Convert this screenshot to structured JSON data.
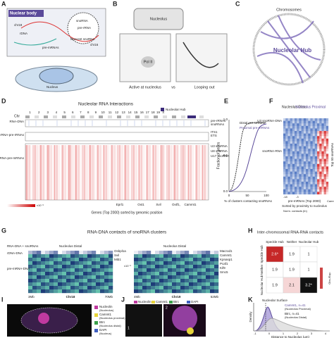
{
  "A": {
    "letter": "A",
    "title": "Nuclear body",
    "labels": [
      "chr18",
      "rDNA",
      "snoRNA",
      "pre-rRNA",
      "Nascent snoRNA",
      "chr16",
      "pre-mRNAs",
      "Nucleus"
    ]
  },
  "B": {
    "letter": "B",
    "labels": [
      "Nucleolus",
      "Pol II",
      "Active at nucleolus",
      "vs",
      "Looping out"
    ]
  },
  "C": {
    "letter": "C",
    "labels": [
      "Chromosomes",
      "Nucleolar Hub"
    ]
  },
  "D": {
    "letter": "D",
    "title": "Nucleolar RNA Interactions",
    "legend": "Nucleolar Hub",
    "chr_label": "Chr",
    "chromosomes": [
      "1",
      "2",
      "3",
      "4",
      "5",
      "6",
      "7",
      "8",
      "9",
      "10",
      "11",
      "12",
      "13",
      "14",
      "15",
      "16",
      "17",
      "18",
      "19",
      "X"
    ],
    "rows": [
      "RNA-DNA",
      "45S rRNA-pre-rRNAs",
      "snoRNA-pre-mRNAs"
    ],
    "right": [
      "pre-rRNAs",
      "snoRNAs",
      "ITS1",
      "ETS",
      "U3 snoRNA",
      "U8 snoRNA",
      "U17 snoRNA"
    ],
    "genes": [
      "Eprl1",
      "Oxt1",
      "Svil",
      "Oxtf1,",
      "Cammt1"
    ],
    "xlabel": "Genes (Top 2000) sorted by genomic position",
    "scale": "x10⁻⁶"
  },
  "E": {
    "letter": "E",
    "legend": [
      "Distal pre-mRNAs",
      "Proximal pre-mRNAs"
    ],
    "ylabel": "Fraction of genes",
    "xlabel": "% of clusters contacting snoRNAs",
    "yticks": [
      "0.0",
      "0.5",
      "1.0"
    ],
    "xticks": [
      "0",
      "50",
      "100"
    ]
  },
  "F": {
    "letter": "F",
    "labels": [
      "Nucleolus Distal",
      "Nucleolus Proximal",
      "U3 snoRNA-DNA",
      "snoRNA-RNA",
      "Top 50 snoRNAs",
      "pre-mRNAs (Top 2000)",
      "Sorted by proximity to nucleolus",
      "Norm. contacts (ln)",
      "-18",
      "-3",
      "Cammt1"
    ]
  },
  "G": {
    "letter": "G",
    "title": "RNA-DNA contacts of snoRNA clusters",
    "labels": [
      "RNA-DNA + snoRNAs",
      "rDNA-DNA",
      "pre-mRNA-DNA",
      "Nucleolus Distal",
      "Nucleolus Distal",
      "x10⁻⁶"
    ],
    "genes_left": [
      "Osbpl1a",
      "Svil",
      "Mib1"
    ],
    "genes_right": [
      "Macrod1",
      "Cammt1",
      "Kpnasp1",
      "Pcaf1",
      "Kif9",
      "Smc5"
    ],
    "axis": [
      "3Mb",
      "70Mb",
      "Chr18",
      "4Mb",
      "52Mb",
      "Chr19"
    ]
  },
  "H": {
    "letter": "H",
    "title": "Inter-chromosomal RNA-RNA contacts",
    "columns": [
      "Speckle Hub",
      "Neither",
      "Nucleolar Hub"
    ],
    "rows": [
      "Speckle Hub",
      "Neither",
      "Nucleolar Hub"
    ],
    "cells": [
      [
        "2.6*",
        "1.9",
        "1"
      ],
      [
        "1.9",
        "1.9",
        "1"
      ],
      [
        "1.9",
        "2.1",
        "3.2*"
      ]
    ],
    "scale": "Obs./Exp."
  },
  "I": {
    "letter": "I",
    "legend": [
      "Nucleolin",
      "(Nucleolus)",
      "Cammt1",
      "(Nucleolus proximal)",
      "Btrc",
      "(Nucleolus distal)",
      "DAPI",
      "(Nucleus)"
    ]
  },
  "J": {
    "letter": "J",
    "legend": [
      "Nucleolin",
      "Cammt1",
      "Btrc",
      "DAPI"
    ],
    "insets": [
      "1",
      "2"
    ]
  },
  "K": {
    "letter": "K",
    "title": "Nucleolar Surface",
    "legend": [
      "Cammt1, n=41",
      "(Nucleolus Proximal)",
      "Btrc, n=41",
      "(Nucleolus Distal)"
    ],
    "ylabel": "Density",
    "xlabel": "Distance to Nucleolus (μm)",
    "xticks": [
      "-1",
      "0",
      "1",
      "2",
      "3",
      "4"
    ]
  }
}
